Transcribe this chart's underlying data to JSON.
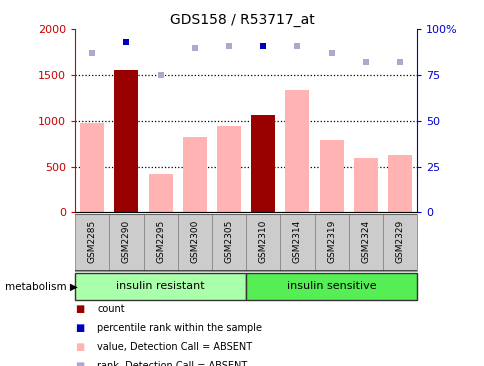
{
  "title": "GDS158 / R53717_at",
  "samples": [
    "GSM2285",
    "GSM2290",
    "GSM2295",
    "GSM2300",
    "GSM2305",
    "GSM2310",
    "GSM2314",
    "GSM2319",
    "GSM2324",
    "GSM2329"
  ],
  "group1_label": "insulin resistant",
  "group2_label": "insulin sensitive",
  "factor_label": "metabolism",
  "value_bars": [
    980,
    1560,
    420,
    820,
    940,
    1060,
    1340,
    790,
    590,
    625
  ],
  "count_bars": [
    0,
    1560,
    0,
    0,
    0,
    1060,
    0,
    0,
    0,
    0
  ],
  "rank_dots_pct": [
    87,
    93,
    75,
    90,
    91,
    91,
    91,
    87,
    82,
    82
  ],
  "rank_dot_dark_indices": [
    1,
    5
  ],
  "ylim_left": [
    0,
    2000
  ],
  "ylim_right": [
    0,
    100
  ],
  "yticks_left": [
    0,
    500,
    1000,
    1500,
    2000
  ],
  "yticks_right": [
    0,
    25,
    50,
    75,
    100
  ],
  "bar_color_value": "#ffb3b3",
  "bar_color_count": "#990000",
  "dot_color_dark": "#0000bb",
  "dot_color_light": "#aaaacc",
  "group1_color": "#aaffaa",
  "group2_color": "#55ee55",
  "ylabel_left_color": "#cc0000",
  "ylabel_right_color": "#0000cc",
  "bg_color": "#ffffff",
  "tick_bg_color": "#cccccc",
  "grid_lines_at": [
    500,
    1000,
    1500
  ],
  "n_group1": 5,
  "n_group2": 5
}
